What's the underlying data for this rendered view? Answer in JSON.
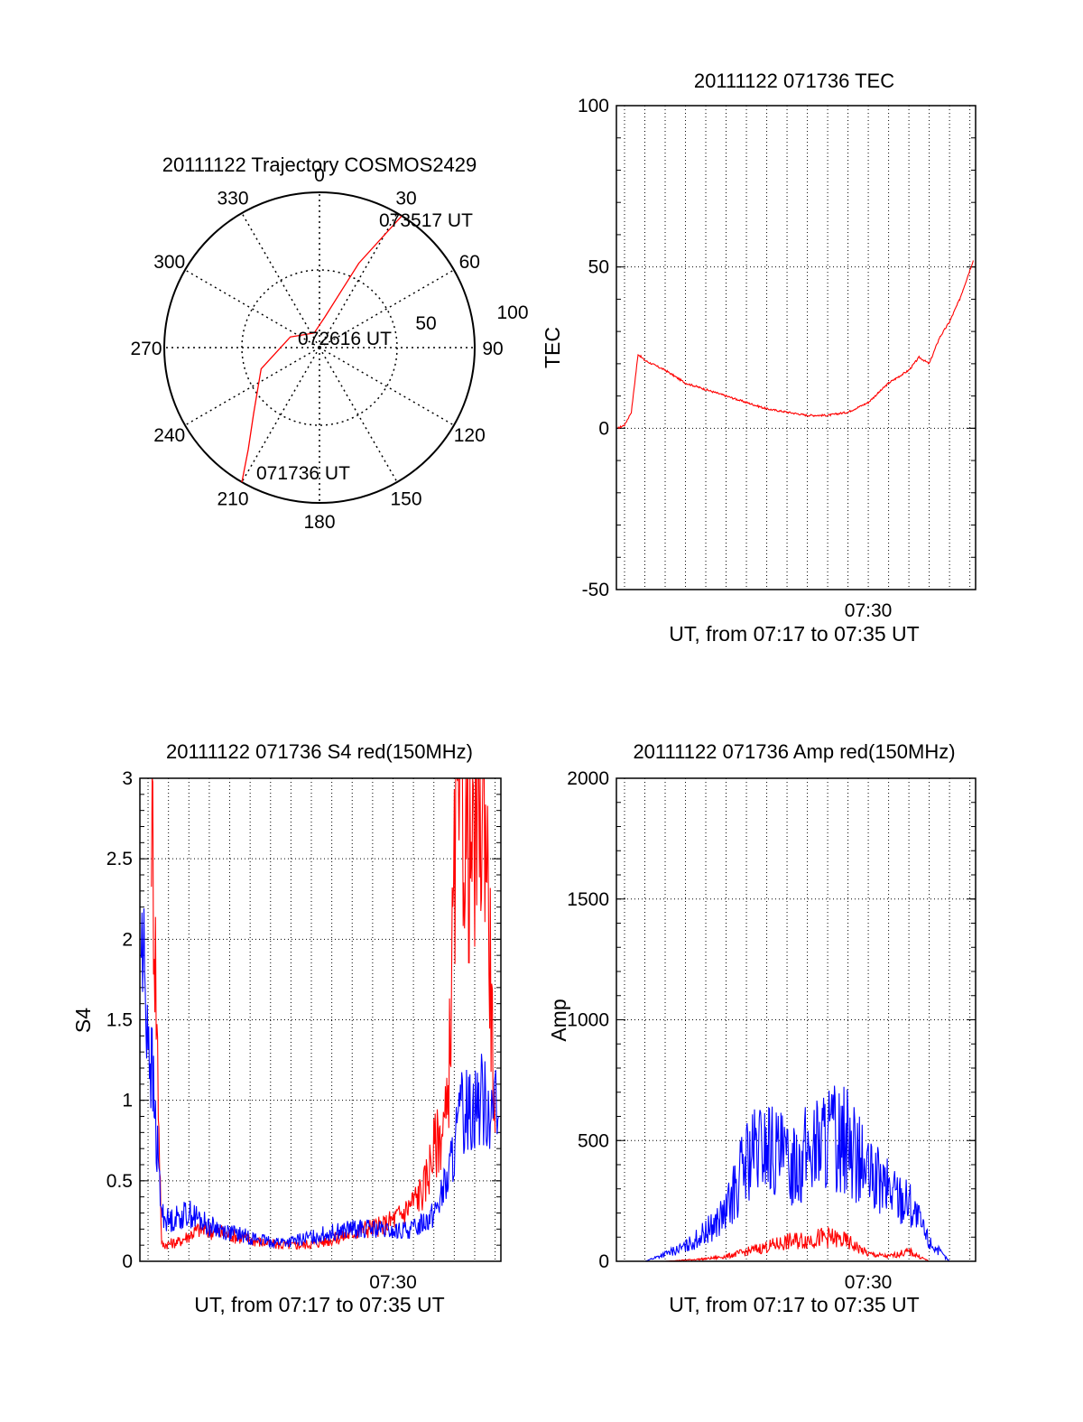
{
  "colors": {
    "red": "#ff0000",
    "blue": "#0000ff",
    "axis": "#000000",
    "grid": "#000000"
  },
  "polar": {
    "title": "20111122 Trajectory COSMOS2429",
    "azimuth_labels": [
      "0",
      "30",
      "60",
      "90",
      "120",
      "150",
      "180",
      "210",
      "240",
      "270",
      "300",
      "330"
    ],
    "radial_labels": [
      "50",
      "100"
    ],
    "elevation_rings": [
      50,
      100
    ],
    "track": {
      "points": [
        [
          210,
          100
        ],
        [
          215,
          80
        ],
        [
          225,
          60
        ],
        [
          250,
          40
        ],
        [
          290,
          20
        ],
        [
          340,
          10
        ],
        [
          10,
          20
        ],
        [
          25,
          60
        ],
        [
          32,
          100
        ]
      ],
      "start_label": "071736 UT",
      "mid_label": "072616 UT",
      "end_label": "073517 UT"
    }
  },
  "chart_data": [
    {
      "id": "tec",
      "type": "line",
      "title": "20111122 071736 TEC",
      "xlabel": "UT, from 07:17 to 07:35 UT",
      "ylabel": "TEC",
      "xlim": [
        "07:17:36",
        "07:35:17"
      ],
      "x_tick_label": "07:30",
      "ylim": [
        -50,
        100
      ],
      "y_ticks": [
        -50,
        0,
        50,
        100
      ],
      "grid": true,
      "series": [
        {
          "color": "red",
          "x": [
            "07:17:40",
            "07:18:00",
            "07:18:20",
            "07:18:40",
            "07:19:00",
            "07:20:00",
            "07:21:00",
            "07:22:00",
            "07:23:00",
            "07:24:00",
            "07:25:00",
            "07:26:00",
            "07:27:00",
            "07:28:00",
            "07:29:00",
            "07:30:00",
            "07:31:00",
            "07:32:00",
            "07:32:30",
            "07:33:00",
            "07:33:30",
            "07:34:00",
            "07:34:30",
            "07:35:10"
          ],
          "y": [
            0,
            1,
            5,
            23,
            21,
            18,
            14,
            12,
            10,
            8,
            6,
            5,
            4,
            4,
            5,
            8,
            14,
            18,
            22,
            20,
            28,
            33,
            40,
            52
          ]
        }
      ]
    },
    {
      "id": "s4",
      "type": "line",
      "title": "20111122 071736 S4 red(150MHz)",
      "xlabel": "UT, from 07:17 to 07:35 UT",
      "ylabel": "S4",
      "xlim": [
        "07:17:36",
        "07:35:17"
      ],
      "x_tick_label": "07:30",
      "ylim": [
        0,
        3
      ],
      "y_ticks": [
        "0",
        "0.5",
        "1",
        "1.5",
        "2",
        "2.5",
        "3"
      ],
      "grid": true,
      "series": [
        {
          "color": "red",
          "x": [
            "07:18:10",
            "07:18:40",
            "07:19:30",
            "07:20:30",
            "07:21:30",
            "07:22:30",
            "07:23:30",
            "07:24:30",
            "07:25:30",
            "07:26:30",
            "07:27:30",
            "07:28:30",
            "07:29:30",
            "07:30:30",
            "07:31:30",
            "07:32:00",
            "07:32:40",
            "07:33:10",
            "07:33:50",
            "07:34:30",
            "07:35:00"
          ],
          "y": [
            3,
            0.1,
            0.12,
            0.2,
            0.18,
            0.15,
            0.12,
            0.1,
            0.1,
            0.12,
            0.15,
            0.2,
            0.22,
            0.3,
            0.45,
            0.7,
            0.9,
            3,
            2.5,
            3,
            0.8
          ]
        },
        {
          "color": "blue",
          "x": [
            "07:17:40",
            "07:18:00",
            "07:18:20",
            "07:18:40",
            "07:19:00",
            "07:20:00",
            "07:21:00",
            "07:22:00",
            "07:23:00",
            "07:24:00",
            "07:25:00",
            "07:26:00",
            "07:27:00",
            "07:28:00",
            "07:29:00",
            "07:30:00",
            "07:31:00",
            "07:32:00",
            "07:32:40",
            "07:33:20",
            "07:34:00",
            "07:34:40",
            "07:35:10"
          ],
          "y": [
            2.0,
            1.5,
            0.9,
            0.3,
            0.25,
            0.3,
            0.22,
            0.18,
            0.15,
            0.12,
            0.12,
            0.15,
            0.18,
            0.2,
            0.2,
            0.18,
            0.2,
            0.3,
            0.5,
            0.9,
            1.0,
            1.0,
            0.9
          ]
        }
      ]
    },
    {
      "id": "amp",
      "type": "line",
      "title": "20111122 071736 Amp red(150MHz)",
      "xlabel": "UT, from 07:17 to 07:35 UT",
      "ylabel": "Amp",
      "xlim": [
        "07:17:36",
        "07:35:17"
      ],
      "x_tick_label": "07:30",
      "ylim": [
        0,
        2000
      ],
      "y_ticks": [
        0,
        500,
        1000,
        1500,
        2000
      ],
      "grid": true,
      "series": [
        {
          "color": "red",
          "x": [
            "07:17:40",
            "07:20:00",
            "07:21:00",
            "07:22:00",
            "07:23:00",
            "07:24:00",
            "07:25:00",
            "07:26:00",
            "07:27:00",
            "07:28:00",
            "07:29:00",
            "07:30:00",
            "07:31:00",
            "07:32:00",
            "07:33:00",
            "07:35:10"
          ],
          "y": [
            0,
            0,
            5,
            10,
            20,
            40,
            60,
            80,
            90,
            100,
            80,
            30,
            20,
            40,
            0,
            0
          ]
        },
        {
          "color": "blue",
          "x": [
            "07:17:40",
            "07:19:00",
            "07:20:00",
            "07:21:00",
            "07:22:00",
            "07:23:00",
            "07:24:00",
            "07:25:00",
            "07:26:00",
            "07:27:00",
            "07:28:00",
            "07:29:00",
            "07:30:00",
            "07:31:00",
            "07:32:00",
            "07:33:00",
            "07:34:00",
            "07:35:10"
          ],
          "y": [
            0,
            0,
            30,
            60,
            120,
            200,
            420,
            480,
            400,
            450,
            520,
            500,
            350,
            300,
            250,
            80,
            0,
            0
          ]
        }
      ]
    }
  ]
}
